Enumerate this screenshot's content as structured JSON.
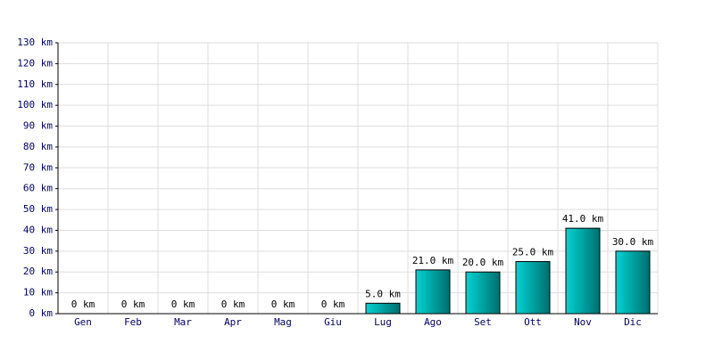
{
  "chart_data": {
    "type": "bar",
    "categories": [
      "Gen",
      "Feb",
      "Mar",
      "Apr",
      "Mag",
      "Giu",
      "Lug",
      "Ago",
      "Set",
      "Ott",
      "Nov",
      "Dic"
    ],
    "values": [
      0,
      0,
      0,
      0,
      0,
      0,
      5,
      21,
      20,
      25,
      41,
      30
    ],
    "value_labels": [
      "0 km",
      "0 km",
      "0 km",
      "0 km",
      "0 km",
      "0 km",
      "5.0 km",
      "21.0 km",
      "20.0 km",
      "25.0 km",
      "41.0 km",
      "30.0 km"
    ],
    "color": "#00d4d4",
    "ylim": [
      0,
      130
    ],
    "yticks": [
      {
        "value": 0,
        "label": "0 km"
      },
      {
        "value": 10,
        "label": "10 km"
      },
      {
        "value": 20,
        "label": "20 km"
      },
      {
        "value": 30,
        "label": "30 km"
      },
      {
        "value": 40,
        "label": "40 km"
      },
      {
        "value": 50,
        "label": "50 km"
      },
      {
        "value": 60,
        "label": "60 km"
      },
      {
        "value": 70,
        "label": "70 km"
      },
      {
        "value": 80,
        "label": "80 km"
      },
      {
        "value": 90,
        "label": "90 km"
      },
      {
        "value": 100,
        "label": "100 km"
      },
      {
        "value": 110,
        "label": "110 km"
      },
      {
        "value": 120,
        "label": "120 km"
      },
      {
        "value": 130,
        "label": "130 km"
      }
    ],
    "grid": true
  }
}
